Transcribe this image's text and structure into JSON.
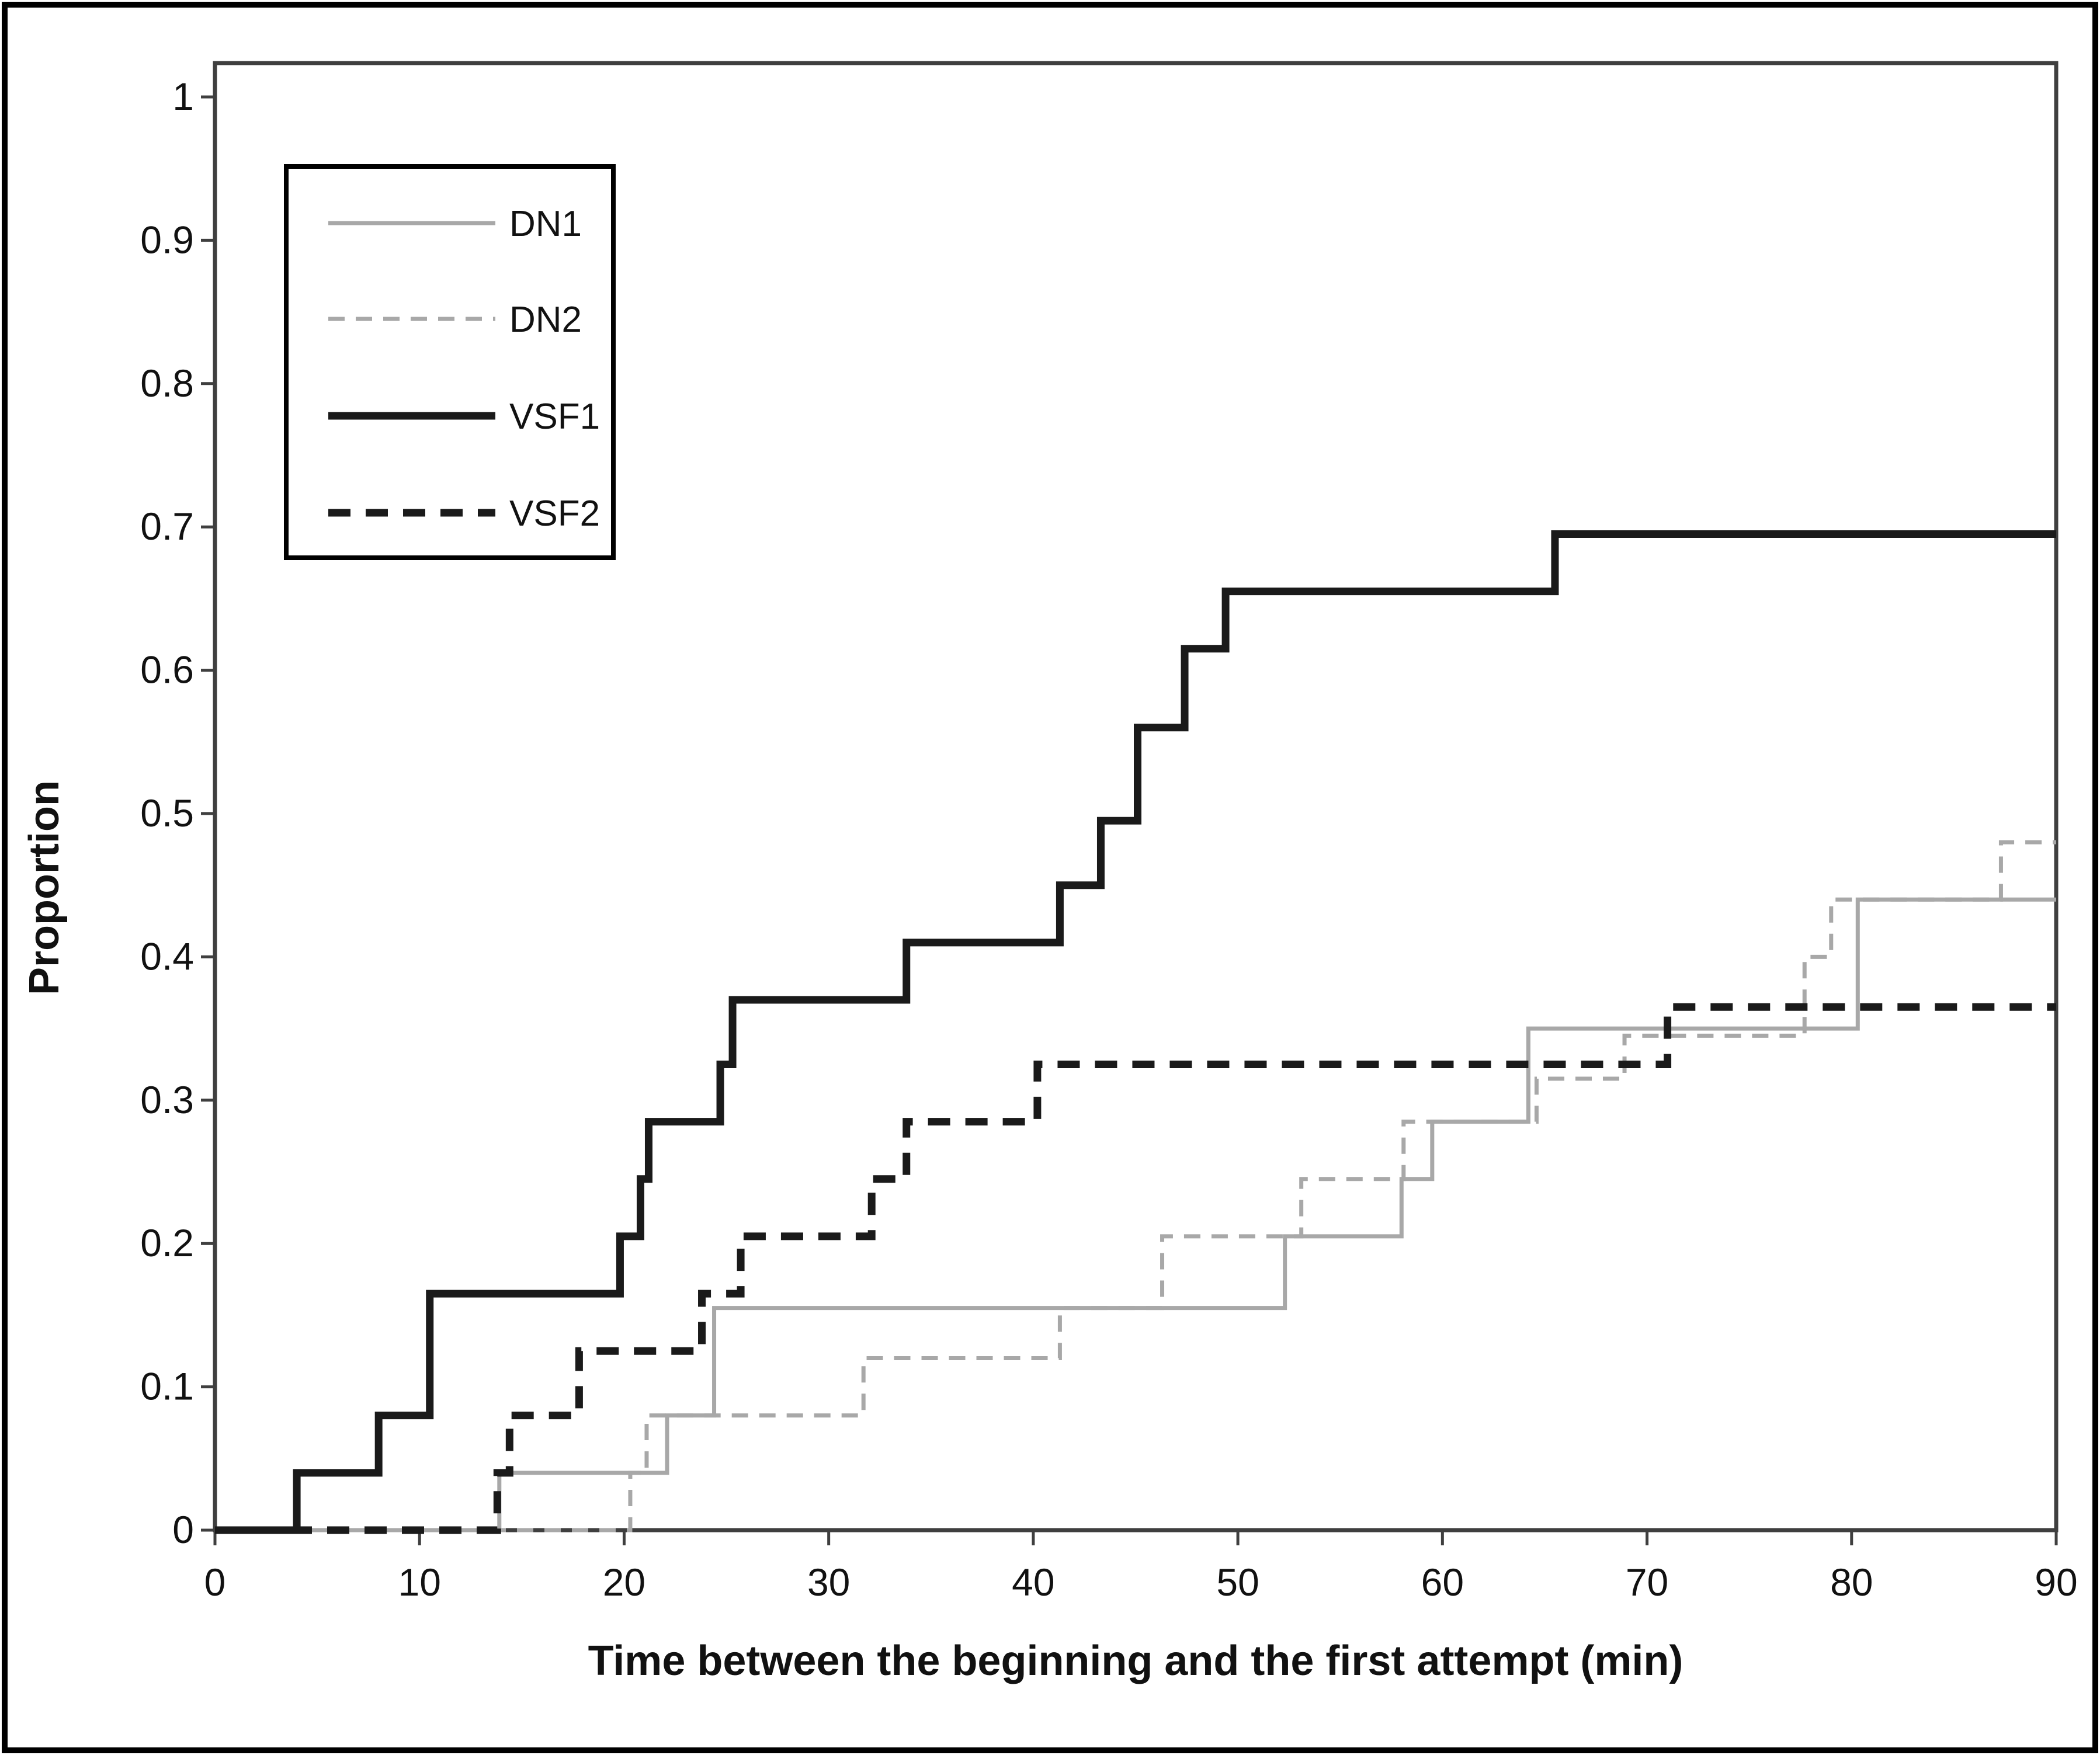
{
  "figure": {
    "background": "#ffffff",
    "outer_border_color": "#000000",
    "plot_border_color": "#3f3f3f"
  },
  "axes": {
    "x": {
      "label": "Time between the beginning and the first attempt (min)",
      "min": 0,
      "max": 90,
      "tick_labels": [
        "0",
        "10",
        "20",
        "30",
        "40",
        "50",
        "60",
        "70",
        "80",
        "90"
      ],
      "tick_values": [
        0,
        10,
        20,
        30,
        40,
        50,
        60,
        70,
        80,
        90
      ]
    },
    "y": {
      "label": "Proportion",
      "min": 0,
      "max": 1,
      "tick_labels": [
        "1",
        "0.9",
        "0.8",
        "0.7",
        "0.6",
        "0.5",
        "0.4",
        "0.3",
        "0.2",
        "0.1",
        "0"
      ],
      "tick_values": [
        1,
        0.9,
        0.8,
        0.7,
        0.6,
        0.5,
        0.4,
        0.3,
        0.2,
        0.1,
        0
      ]
    }
  },
  "legend": {
    "position": "upper-left",
    "items": [
      {
        "label": "DN1",
        "color": "#a8a8a8",
        "dash": "solid",
        "width": 7
      },
      {
        "label": "DN2",
        "color": "#a8a8a8",
        "dash": "dashed",
        "width": 7
      },
      {
        "label": "VSF1",
        "color": "#1a1a1a",
        "dash": "solid",
        "width": 13
      },
      {
        "label": "VSF2",
        "color": "#1a1a1a",
        "dash": "dashed",
        "width": 13
      }
    ]
  },
  "chart_data": {
    "type": "line",
    "subtype": "step",
    "title": "",
    "xlabel": "Time between the beginning and the first attempt (min)",
    "ylabel": "Proportion",
    "xlim": [
      0,
      90
    ],
    "ylim": [
      0,
      1
    ],
    "grid": false,
    "legend_position": "upper-left",
    "series": [
      {
        "name": "DN1",
        "color": "#a8a8a8",
        "dash": "solid",
        "stroke_width": 7,
        "points": [
          [
            0,
            0
          ],
          [
            13.9,
            0.04
          ],
          [
            22.1,
            0.08
          ],
          [
            24.4,
            0.155
          ],
          [
            52.3,
            0.205
          ],
          [
            58,
            0.245
          ],
          [
            59.5,
            0.285
          ],
          [
            64.2,
            0.35
          ],
          [
            80.3,
            0.44
          ],
          [
            90,
            0.44
          ]
        ]
      },
      {
        "name": "DN2",
        "color": "#a8a8a8",
        "dash": "dashed",
        "stroke_width": 7,
        "points": [
          [
            0,
            0
          ],
          [
            20.3,
            0.04
          ],
          [
            21.1,
            0.08
          ],
          [
            31.7,
            0.12
          ],
          [
            41.3,
            0.155
          ],
          [
            46.3,
            0.205
          ],
          [
            53.1,
            0.245
          ],
          [
            58.1,
            0.285
          ],
          [
            64.6,
            0.315
          ],
          [
            68.9,
            0.345
          ],
          [
            77.7,
            0.4
          ],
          [
            79,
            0.44
          ],
          [
            87.3,
            0.48
          ],
          [
            90,
            0.48
          ]
        ]
      },
      {
        "name": "VSF1",
        "color": "#1a1a1a",
        "dash": "solid",
        "stroke_width": 13,
        "points": [
          [
            0,
            0
          ],
          [
            4,
            0.04
          ],
          [
            8,
            0.08
          ],
          [
            10.5,
            0.165
          ],
          [
            19.8,
            0.205
          ],
          [
            20.8,
            0.245
          ],
          [
            21.2,
            0.285
          ],
          [
            24.7,
            0.325
          ],
          [
            25.3,
            0.37
          ],
          [
            33.8,
            0.41
          ],
          [
            41.3,
            0.45
          ],
          [
            43.3,
            0.495
          ],
          [
            45.1,
            0.56
          ],
          [
            47.4,
            0.615
          ],
          [
            49.4,
            0.655
          ],
          [
            65.5,
            0.695
          ],
          [
            90,
            0.695
          ]
        ]
      },
      {
        "name": "VSF2",
        "color": "#1a1a1a",
        "dash": "dashed",
        "stroke_width": 13,
        "points": [
          [
            0,
            0
          ],
          [
            13.8,
            0.04
          ],
          [
            14.4,
            0.08
          ],
          [
            17.8,
            0.125
          ],
          [
            23.8,
            0.165
          ],
          [
            25.7,
            0.205
          ],
          [
            32.1,
            0.245
          ],
          [
            33.8,
            0.285
          ],
          [
            40.2,
            0.325
          ],
          [
            71,
            0.365
          ],
          [
            90,
            0.365
          ]
        ]
      }
    ]
  }
}
